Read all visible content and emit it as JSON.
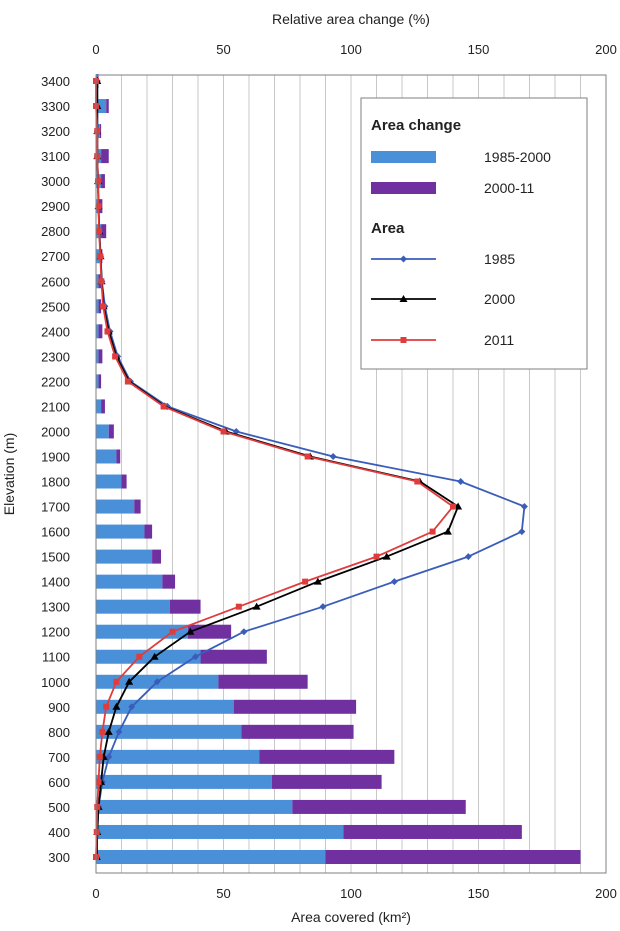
{
  "chart_data": {
    "type": "bar",
    "orientation": "horizontal",
    "title": "",
    "top_axis": {
      "label": "Relative area change (%)",
      "range": [
        0,
        200
      ],
      "ticks": [
        "0",
        "50",
        "100",
        "150",
        "200"
      ]
    },
    "bottom_axis": {
      "label": "Area covered (km²)",
      "range": [
        0,
        200
      ],
      "ticks": [
        "0",
        "50",
        "100",
        "150",
        "200"
      ]
    },
    "y_axis": {
      "label": "Elevation (m)",
      "range": [
        300,
        3400
      ],
      "ticks": [
        "3400",
        "3300",
        "3200",
        "3100",
        "3000",
        "2900",
        "2800",
        "2700",
        "2600",
        "2500",
        "2400",
        "2300",
        "2200",
        "2100",
        "2000",
        "1900",
        "1800",
        "1700",
        "1600",
        "1500",
        "1400",
        "1300",
        "1200",
        "1100",
        "1000",
        "900",
        "800",
        "700",
        "600",
        "500",
        "400",
        "300"
      ]
    },
    "grid": "vertical",
    "legend": {
      "position": "top-right",
      "bar_heading": "Area change",
      "line_heading": "Area"
    },
    "elevations": [
      3400,
      3300,
      3200,
      3100,
      3000,
      2900,
      2800,
      2700,
      2600,
      2500,
      2400,
      2300,
      2200,
      2100,
      2000,
      1900,
      1800,
      1700,
      1600,
      1500,
      1400,
      1300,
      1200,
      1100,
      1000,
      900,
      800,
      700,
      600,
      500,
      400,
      300
    ],
    "bar_series": [
      {
        "name": "1985-2000",
        "color": "#4a90d9",
        "values": [
          0.5,
          4,
          1.5,
          2,
          2,
          1,
          2,
          1.5,
          1,
          1,
          1,
          1,
          1,
          2,
          5,
          8,
          10,
          15,
          19,
          22,
          26,
          29,
          36,
          41,
          48,
          54,
          57,
          64,
          69,
          77,
          97,
          90
        ]
      },
      {
        "name": "2000-11",
        "color": "#7030a0",
        "values": [
          0.5,
          1,
          0.5,
          3,
          1.5,
          1.5,
          2,
          1,
          1.5,
          1,
          1.5,
          1.5,
          1,
          1.5,
          2,
          1.5,
          2,
          2.5,
          3,
          3.5,
          5,
          12,
          17,
          26,
          35,
          48,
          44,
          53,
          43,
          68,
          70,
          100
        ]
      }
    ],
    "line_series": [
      {
        "name": "1985",
        "color": "#3a5dba",
        "marker": "diamond",
        "values": [
          0.5,
          0.5,
          0.5,
          0.5,
          0.8,
          1,
          1.3,
          1.8,
          2.3,
          3.5,
          5.5,
          8.5,
          13.5,
          28,
          55,
          93,
          143,
          168,
          167,
          146,
          117,
          89,
          58,
          39,
          24,
          14,
          9,
          5,
          2.5,
          1,
          0.5,
          0.3
        ]
      },
      {
        "name": "2000",
        "color": "#000000",
        "marker": "triangle",
        "values": [
          0.5,
          0.5,
          0.5,
          0.5,
          0.8,
          1,
          1.3,
          1.8,
          2.2,
          3,
          5,
          8,
          13,
          27,
          51,
          84,
          127,
          142,
          138,
          114,
          87,
          63,
          37,
          23,
          13,
          8,
          5,
          3,
          2,
          1,
          0.5,
          0.3
        ]
      },
      {
        "name": "2011",
        "color": "#e03c3c",
        "marker": "square",
        "values": [
          0,
          0,
          0.5,
          0.5,
          0.8,
          1,
          1.2,
          1.7,
          2.1,
          2.8,
          4.5,
          7.5,
          12.5,
          26.5,
          50,
          83,
          126,
          140,
          132,
          110,
          82,
          56,
          30,
          17,
          8,
          4,
          2.5,
          1.5,
          1,
          0.5,
          0.3,
          0
        ]
      }
    ]
  }
}
